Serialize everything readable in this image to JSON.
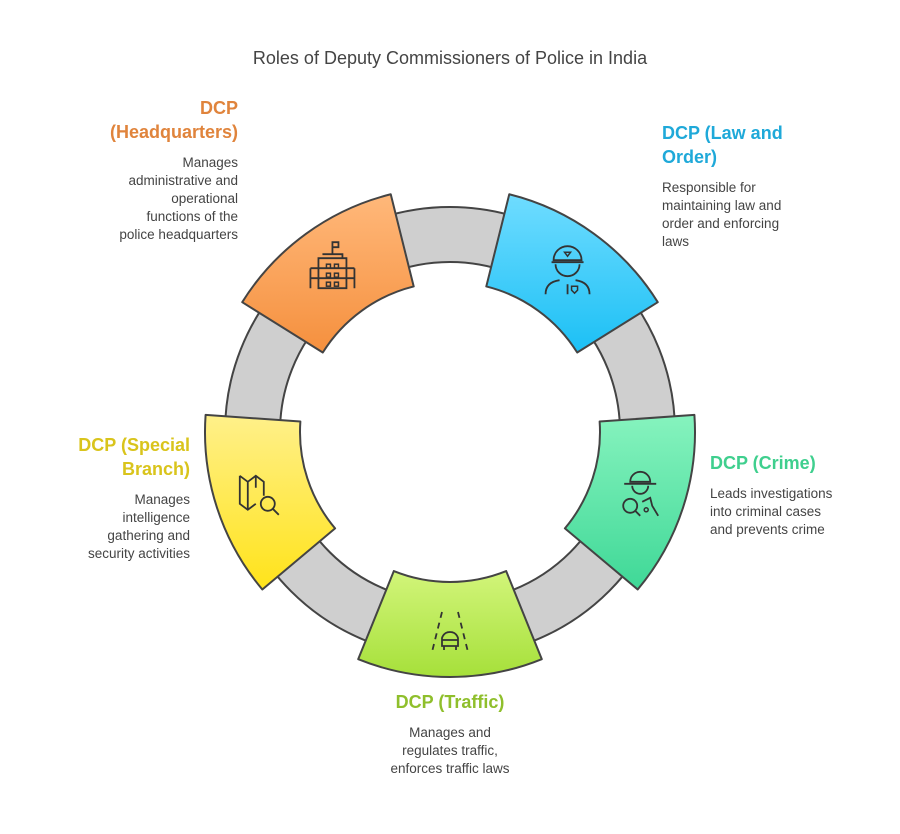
{
  "title": "Roles of Deputy Commissioners of Police in India",
  "roles": [
    {
      "heading": "DCP\n(Headquarters)",
      "description": "Manages\nadministrative and\noperational\nfunctions of the\npolice headquarters",
      "color": "#e0843c",
      "fill_top": "#ffb87a",
      "fill_bottom": "#f5903e",
      "icon": "building-icon"
    },
    {
      "heading": "DCP (Law and\nOrder)",
      "description": "Responsible for\nmaintaining law and\norder and enforcing\nlaws",
      "color": "#1fa9d9",
      "fill_top": "#6fdcff",
      "fill_bottom": "#1cc0f5",
      "icon": "police-officer-icon"
    },
    {
      "heading": "DCP (Crime)",
      "description": "Leads investigations\ninto criminal cases\nand prevents crime",
      "color": "#3fcf8e",
      "fill_top": "#86f3be",
      "fill_bottom": "#3fd897",
      "icon": "detective-icon"
    },
    {
      "heading": "DCP (Traffic)",
      "description": "Manages and\nregulates traffic,\nenforces traffic laws",
      "color": "#8fbf2c",
      "fill_top": "#d2f57a",
      "fill_bottom": "#a6e03a",
      "icon": "road-car-icon"
    },
    {
      "heading": "DCP (Special\nBranch)",
      "description": "Manages\nintelligence\ngathering and\nsecurity activities",
      "color": "#d9c41c",
      "fill_top": "#fff08a",
      "fill_bottom": "#ffe31a",
      "icon": "map-search-icon"
    }
  ],
  "ring_color": "#cfcfcf"
}
